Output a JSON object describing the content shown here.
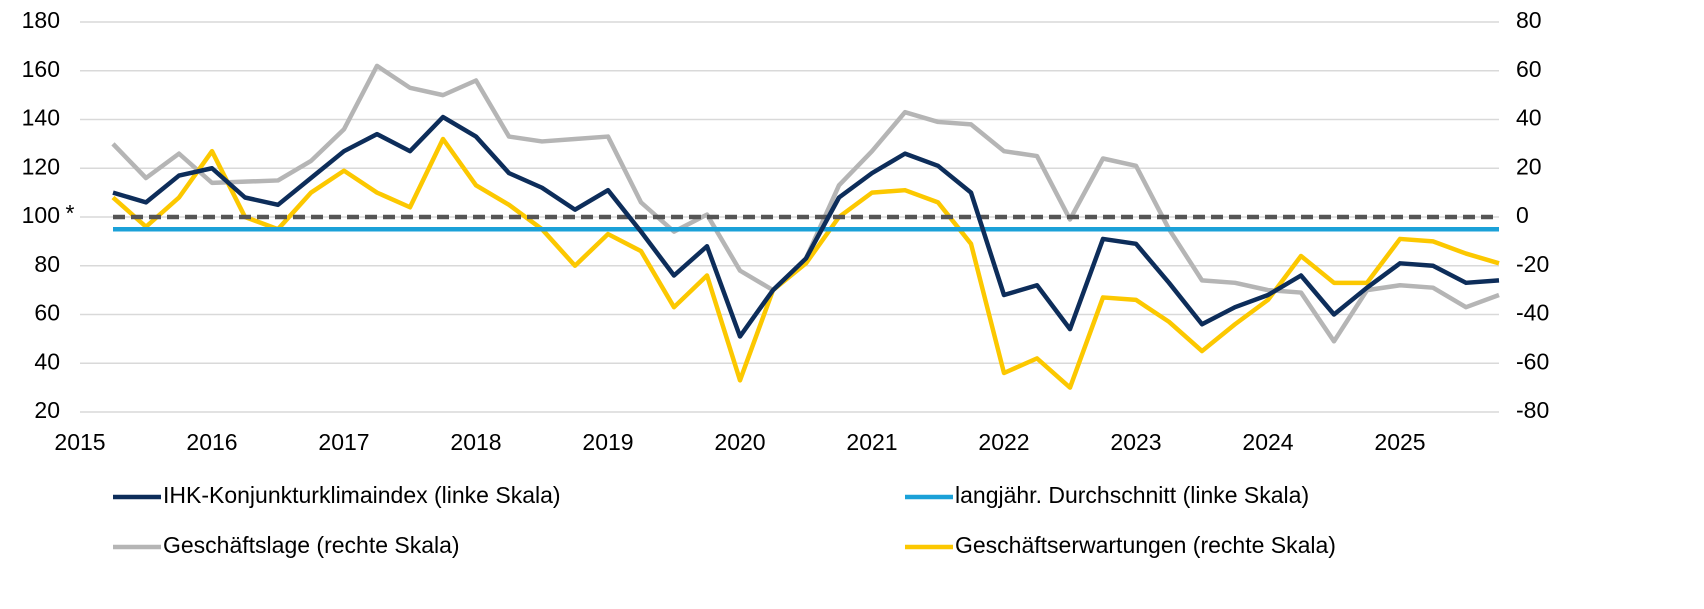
{
  "chart_data": {
    "type": "line",
    "x": [
      2015.25,
      2015.5,
      2015.75,
      2016,
      2016.25,
      2016.5,
      2016.75,
      2017,
      2017.25,
      2017.5,
      2017.75,
      2018,
      2018.25,
      2018.5,
      2018.75,
      2019,
      2019.25,
      2019.5,
      2019.75,
      2020,
      2020.25,
      2020.5,
      2020.75,
      2021,
      2021.25,
      2021.5,
      2021.75,
      2022,
      2022.25,
      2022.5,
      2022.75,
      2023,
      2023.25,
      2023.5,
      2023.75,
      2024,
      2024.25,
      2024.5,
      2024.75,
      2025,
      2025.25,
      2025.5,
      2025.75
    ],
    "series": [
      {
        "name": "IHK-Konjunkturklimaindex (linke Skala)",
        "color": "#0d2d5a",
        "axis": "y",
        "values": [
          110,
          106,
          117,
          120,
          108,
          105,
          116,
          127,
          134,
          127,
          141,
          133,
          118,
          112,
          103,
          111,
          94,
          76,
          88,
          51,
          70,
          83,
          108,
          118,
          126,
          121,
          110,
          68,
          72,
          54,
          91,
          89,
          73,
          56,
          63,
          68,
          76,
          60,
          71,
          81,
          80,
          73,
          74
        ]
      },
      {
        "name": "langjähr. Durchschnitt (linke Skala)",
        "color": "#1ba1d8",
        "axis": "y",
        "values": [
          95,
          95,
          95,
          95,
          95,
          95,
          95,
          95,
          95,
          95,
          95,
          95,
          95,
          95,
          95,
          95,
          95,
          95,
          95,
          95,
          95,
          95,
          95,
          95,
          95,
          95,
          95,
          95,
          95,
          95,
          95,
          95,
          95,
          95,
          95,
          95,
          95,
          95,
          95,
          95,
          95,
          95,
          95
        ]
      },
      {
        "name": "Geschäftslage (rechte Skala)",
        "color": "#b5b5b5",
        "axis": "y2",
        "values": [
          30,
          16,
          26,
          14,
          14.5,
          15,
          23,
          36,
          62,
          53,
          50,
          56,
          33,
          31,
          32,
          33,
          6,
          -6,
          1,
          -22,
          -30,
          -17,
          13,
          27,
          43,
          39,
          38,
          27,
          25,
          -1,
          24,
          21,
          -5,
          -26,
          -27,
          -30,
          -31,
          -51,
          -30,
          -28,
          -29,
          -37,
          -32
        ]
      },
      {
        "name": "Geschäftserwartungen (rechte Skala)",
        "color": "#fcc800",
        "axis": "y2",
        "values": [
          8,
          -4,
          8,
          27,
          0,
          -5,
          10,
          19,
          10,
          4,
          32,
          13,
          5,
          -5,
          -20,
          -7,
          -14,
          -37,
          -24,
          -67,
          -30,
          -19,
          0,
          10,
          11,
          6,
          -11,
          -64,
          -58,
          -70,
          -33,
          -34,
          -43,
          -55,
          -44,
          -34,
          -16,
          -27,
          -27,
          -9,
          -10,
          -15,
          -19
        ]
      }
    ],
    "reference_line": {
      "value": 100,
      "label": "*",
      "color": "#555555"
    },
    "xlim": [
      2015,
      2025.75
    ],
    "xticks": [
      2015,
      2016,
      2017,
      2018,
      2019,
      2020,
      2021,
      2022,
      2023,
      2024,
      2025
    ],
    "ylim": [
      20,
      180
    ],
    "yticks": [
      20,
      40,
      60,
      80,
      100,
      120,
      140,
      160,
      180
    ],
    "y2lim": [
      -80,
      80
    ],
    "y2ticks": [
      -80,
      -60,
      -40,
      -20,
      0,
      20,
      40,
      60,
      80
    ],
    "grid": true
  }
}
